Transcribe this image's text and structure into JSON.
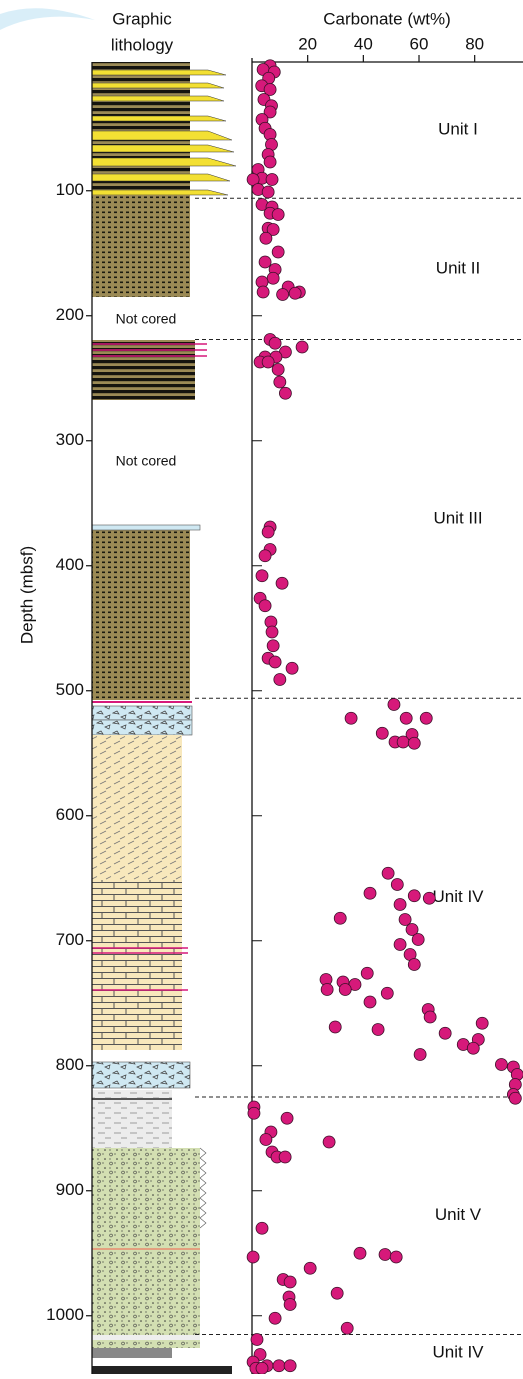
{
  "chart_data": {
    "type": "scatter",
    "lithology_label": [
      "Graphic",
      "lithology"
    ],
    "x_label": "Carbonate (wt%)",
    "y_label": "Depth (mbsf)",
    "not_cored_labels": [
      "Not cored",
      "Not cored"
    ],
    "color": "#d6197a",
    "xlim": [
      0,
      97
    ],
    "xticks": [
      20,
      40,
      60,
      80
    ],
    "ylim": [
      -3,
      1045
    ],
    "yticks": [
      100,
      200,
      300,
      400,
      500,
      600,
      700,
      800,
      900,
      1000
    ],
    "y_inverted": true,
    "unit_boundaries": [
      106,
      219,
      506,
      825,
      1015
    ],
    "units": [
      "Unit I",
      "Unit II",
      "Unit III",
      "Unit IV",
      "Unit V",
      "Unit IV"
    ],
    "x": [
      6.5,
      4,
      8,
      6,
      3.5,
      6.5,
      4.3,
      7,
      6.5,
      3.6,
      4.7,
      6.5,
      7,
      5.8,
      6.5,
      2.2,
      3.6,
      0.4,
      7.2,
      2.2,
      5.8,
      3.6,
      7.2,
      6.5,
      9.4,
      5.8,
      7.6,
      5,
      9.4,
      4.7,
      8.3,
      7.6,
      3.6,
      13,
      17,
      4,
      11,
      15.5,
      6.5,
      8.3,
      18,
      12,
      4.7,
      8.6,
      2.9,
      5.8,
      9.4,
      10,
      12,
      6.5,
      5.8,
      6.5,
      4.7,
      3.6,
      10.8,
      2.9,
      4.7,
      6.8,
      7.2,
      7.6,
      5.8,
      8.3,
      14.4,
      10,
      51,
      35.6,
      55.4,
      62.6,
      46.8,
      57.5,
      51.4,
      54.3,
      58.3,
      48.9,
      52.2,
      42.4,
      58.3,
      63.7,
      53.2,
      31.7,
      55,
      57.5,
      59.7,
      53.2,
      56.8,
      58.3,
      26.6,
      32.7,
      37,
      41.4,
      27,
      33.5,
      48.6,
      42.4,
      63.3,
      64,
      29.9,
      45.3,
      82.7,
      69.4,
      81.3,
      75.9,
      79.5,
      60.4,
      89.6,
      93.9,
      95.3,
      94.6,
      93.9,
      94.6,
      0.7,
      0.7,
      12.6,
      6.8,
      5,
      27.7,
      7.2,
      9,
      11.9,
      3.6,
      0.4,
      38.8,
      47.8,
      51.8,
      20.9,
      11.2,
      13.7,
      30.6,
      13.3,
      13.7,
      8.3,
      34.2,
      1.8,
      2.9,
      0.4,
      1.4,
      5.4,
      9.7,
      13.7,
      3.6
    ],
    "values": [
      0,
      3,
      5,
      10,
      16,
      19,
      27,
      32,
      37,
      43,
      50,
      55,
      63,
      71,
      77,
      83,
      90,
      91,
      91,
      99,
      101,
      111,
      113,
      118,
      119,
      130,
      131,
      138,
      149,
      157,
      163,
      170,
      173,
      177,
      181,
      181,
      183,
      182,
      219,
      222,
      225,
      229,
      233,
      233,
      237,
      237,
      243,
      253,
      262,
      369,
      373,
      387,
      392,
      408,
      414,
      426,
      432,
      445,
      453,
      464,
      474,
      477,
      482,
      491,
      511,
      522,
      522,
      522,
      534,
      535,
      541,
      541,
      542,
      646,
      655,
      662,
      664,
      666,
      671,
      682,
      683,
      691,
      699,
      703,
      711,
      719,
      731,
      733,
      735,
      726,
      739,
      739,
      742,
      749,
      755,
      761,
      769,
      771,
      766,
      774,
      779,
      783,
      786,
      791,
      799,
      801,
      807,
      815,
      823,
      826,
      833,
      838,
      842,
      853,
      859,
      861,
      869,
      873,
      873,
      930,
      953,
      950,
      951,
      953,
      962,
      971,
      973,
      982,
      985,
      991,
      1002,
      1010,
      1019,
      1031,
      1037,
      1042,
      1040,
      1040,
      1040,
      1042
    ]
  }
}
